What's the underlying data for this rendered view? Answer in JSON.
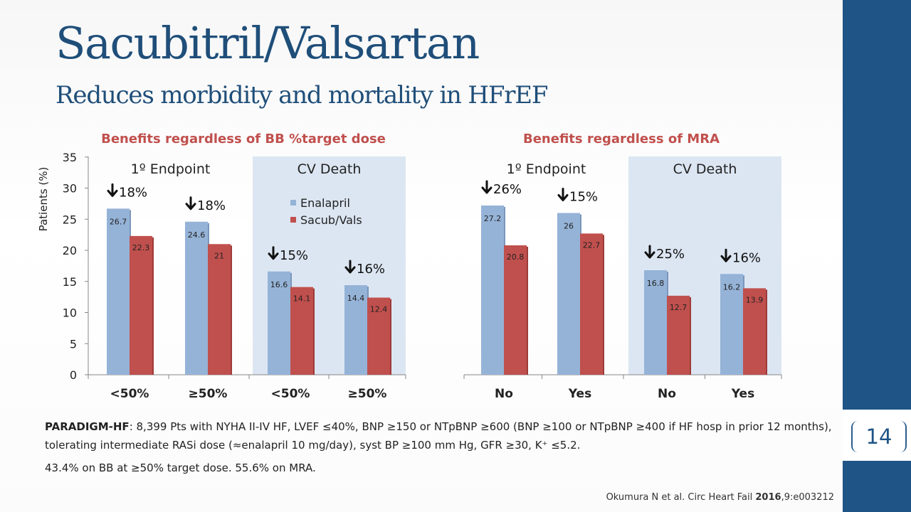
{
  "slide": {
    "title": "Sacubitril/Valsartan",
    "subtitle": "Reduces morbidity and mortality in HFrEF",
    "page_number": "14"
  },
  "footnote": {
    "trial_name": "PARADIGM-HF",
    "trial_text": ": 8,399 Pts with NYHA II-IV HF, LVEF ≤40%, BNP ≥150 or NTpBNP ≥600 (BNP ≥100 or NTpBNP ≥400 if HF hosp in prior 12 months), tolerating intermediate RASi dose (≈enalapril 10 mg/day), syst BP ≥100 mm Hg, GFR ≥30, K⁺ ≤5.2.",
    "line2": "43.4% on BB at ≥50% target dose. 55.6% on MRA."
  },
  "citation": {
    "authors": "Okumura N et al. Circ Heart Fail ",
    "year": "2016",
    "ref": ",9:e003212"
  },
  "colors": {
    "title": "#1f4e79",
    "chart_heading": "#c0504d",
    "enalapril": "#95b3d7",
    "sacub_vals": "#c0504d",
    "panel_shade": "#dce6f2",
    "side_bar": "#1f5487"
  },
  "chart_data": [
    {
      "type": "bar",
      "title": "Benefits regardless of BB %target dose",
      "ylabel": "Patients (%)",
      "ylim": [
        0,
        35
      ],
      "yticks": [
        0,
        5,
        10,
        15,
        20,
        25,
        30,
        35
      ],
      "groups": [
        {
          "label": "1º Endpoint",
          "shaded": false
        },
        {
          "label": "CV Death",
          "shaded": true
        }
      ],
      "categories": [
        "<50%",
        "≥50%",
        "<50%",
        "≥50%"
      ],
      "series": [
        {
          "name": "Enalapril",
          "values": [
            26.7,
            24.6,
            16.6,
            14.4
          ]
        },
        {
          "name": "Sacub/Vals",
          "values": [
            22.3,
            21,
            14.1,
            12.4
          ]
        }
      ],
      "reductions": [
        "18%",
        "18%",
        "15%",
        "16%"
      ],
      "legend": "inside CV Death panel, top"
    },
    {
      "type": "bar",
      "title": "Benefits regardless of MRA",
      "ylim": [
        0,
        35
      ],
      "groups": [
        {
          "label": "1º Endpoint",
          "shaded": false
        },
        {
          "label": "CV Death",
          "shaded": true
        }
      ],
      "categories": [
        "No",
        "Yes",
        "No",
        "Yes"
      ],
      "series": [
        {
          "name": "Enalapril",
          "values": [
            27.2,
            26,
            16.8,
            16.2
          ]
        },
        {
          "name": "Sacub/Vals",
          "values": [
            20.8,
            22.7,
            12.7,
            13.9
          ]
        }
      ],
      "reductions": [
        "26%",
        "15%",
        "25%",
        "16%"
      ]
    }
  ]
}
